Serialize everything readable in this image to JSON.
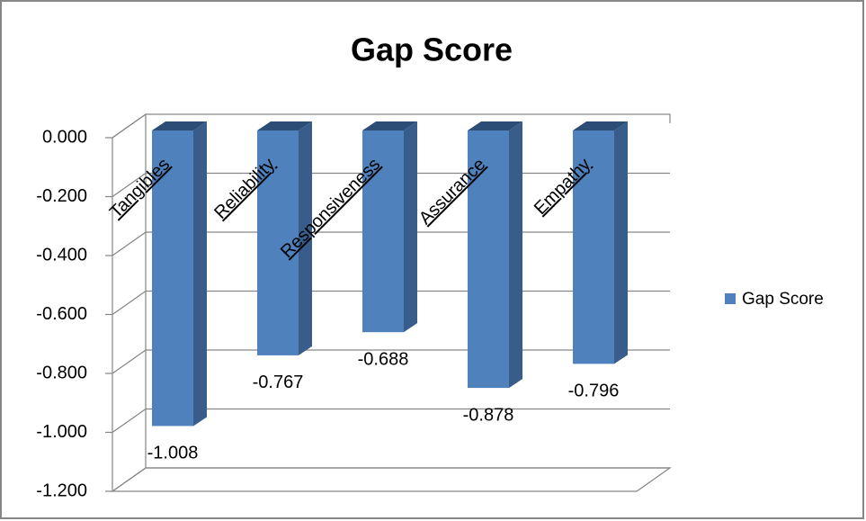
{
  "chart_data": {
    "type": "bar3d",
    "title": "Gap Score",
    "categories": [
      "Tangibles",
      "Reliability",
      "Responsiveness",
      "Assurance",
      "Empathy"
    ],
    "series": [
      {
        "name": "Gap Score",
        "color": "#4f81bd",
        "values": [
          -1.008,
          -0.767,
          -0.688,
          -0.878,
          -0.796
        ],
        "value_labels": [
          "-1.008",
          "-0.767",
          "-0.688",
          "-0.878",
          "-0.796"
        ]
      }
    ],
    "ylim": [
      -1.2,
      0
    ],
    "yticks": [
      {
        "value": 0,
        "label": "0.000"
      },
      {
        "value": -0.2,
        "label": "-0.200"
      },
      {
        "value": -0.4,
        "label": "-0.400"
      },
      {
        "value": -0.6,
        "label": "-0.600"
      },
      {
        "value": -0.8,
        "label": "-0.800"
      },
      {
        "value": -1.0,
        "label": "-1.000"
      },
      {
        "value": -1.2,
        "label": "-1.200"
      }
    ],
    "grid": true,
    "legend": "right"
  }
}
